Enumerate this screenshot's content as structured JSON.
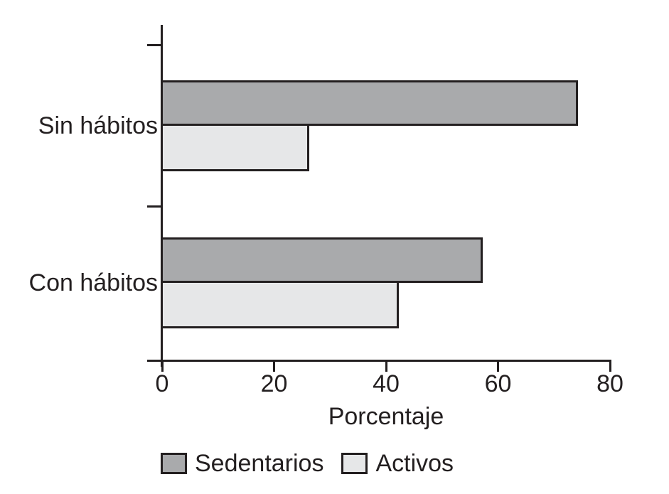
{
  "chart_data": {
    "type": "bar",
    "orientation": "horizontal",
    "title": "",
    "categories": [
      "Sin hábitos",
      "Con hábitos"
    ],
    "series": [
      {
        "name": "Sedentarios",
        "color": "#a9aaac",
        "values": [
          74,
          57
        ]
      },
      {
        "name": "Activos",
        "color": "#e6e7e8",
        "values": [
          26,
          42
        ]
      }
    ],
    "xlabel": "Porcentaje",
    "xlim": [
      0,
      80
    ],
    "xticks": [
      0,
      20,
      40,
      60,
      80
    ],
    "xtick_labels": [
      "0",
      "20",
      "40",
      "60",
      "80"
    ],
    "legend_position": "bottom",
    "grid": false,
    "axis_color": "#231f20",
    "background": "#ffffff"
  }
}
